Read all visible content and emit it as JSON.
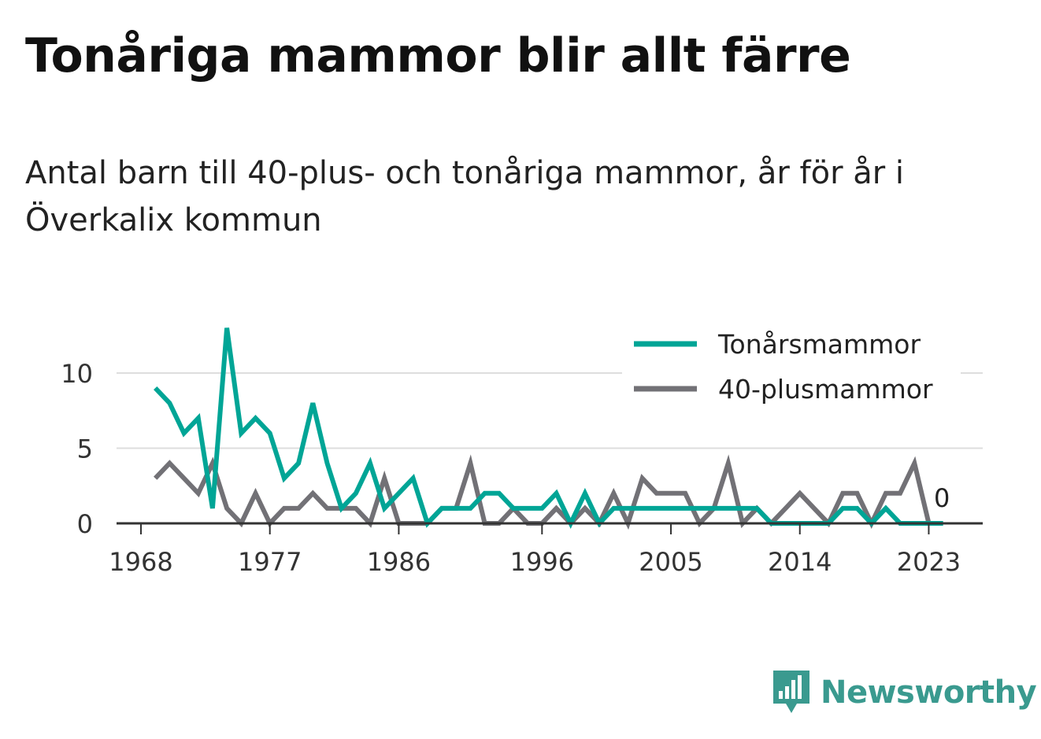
{
  "title": "Tonåriga mammor blir allt färre",
  "subtitle": "Antal barn till 40-plus- och tonåriga mammor, år för år i Överkalix kommun",
  "brand": "Newsworthy",
  "colors": {
    "teen": "#00a596",
    "forty": "#727176",
    "grid": "#dddddd",
    "axis": "#333333",
    "brand": "#3a9a8f"
  },
  "chart_data": {
    "type": "line",
    "x": [
      1969,
      1970,
      1971,
      1972,
      1973,
      1974,
      1975,
      1976,
      1977,
      1978,
      1979,
      1980,
      1981,
      1982,
      1983,
      1984,
      1985,
      1986,
      1987,
      1988,
      1989,
      1990,
      1991,
      1992,
      1993,
      1994,
      1995,
      1996,
      1997,
      1998,
      1999,
      2000,
      2001,
      2002,
      2003,
      2004,
      2005,
      2006,
      2007,
      2008,
      2009,
      2010,
      2011,
      2012,
      2013,
      2014,
      2015,
      2016,
      2017,
      2018,
      2019,
      2020,
      2021,
      2022,
      2023,
      2024
    ],
    "series": [
      {
        "name": "Tonårsmammor",
        "color": "#00a596",
        "values": [
          9,
          8,
          6,
          7,
          1,
          13,
          6,
          7,
          6,
          3,
          4,
          8,
          4,
          1,
          2,
          4,
          1,
          2,
          3,
          0,
          1,
          1,
          1,
          2,
          2,
          1,
          1,
          1,
          2,
          0,
          2,
          0,
          1,
          1,
          1,
          1,
          1,
          1,
          1,
          1,
          1,
          1,
          1,
          0,
          0,
          0,
          0,
          0,
          1,
          1,
          0,
          1,
          0,
          0,
          0,
          0
        ]
      },
      {
        "name": "40-plusmammor",
        "color": "#727176",
        "values": [
          3,
          4,
          3,
          2,
          4,
          1,
          0,
          2,
          0,
          1,
          1,
          2,
          1,
          1,
          1,
          0,
          3,
          0,
          0,
          0,
          1,
          1,
          4,
          0,
          0,
          1,
          0,
          0,
          1,
          0,
          1,
          0,
          2,
          0,
          3,
          2,
          2,
          2,
          0,
          1,
          4,
          0,
          1,
          0,
          1,
          2,
          1,
          0,
          2,
          2,
          0,
          2,
          2,
          4,
          0,
          0
        ]
      }
    ],
    "xticks": [
      1968,
      1977,
      1986,
      1996,
      2005,
      2014,
      2023
    ],
    "yticks": [
      0,
      5,
      10
    ],
    "xlim": [
      1968,
      2025
    ],
    "ylim": [
      0,
      13
    ],
    "end_label": "0",
    "grid": true,
    "legend_position": "top-right"
  }
}
